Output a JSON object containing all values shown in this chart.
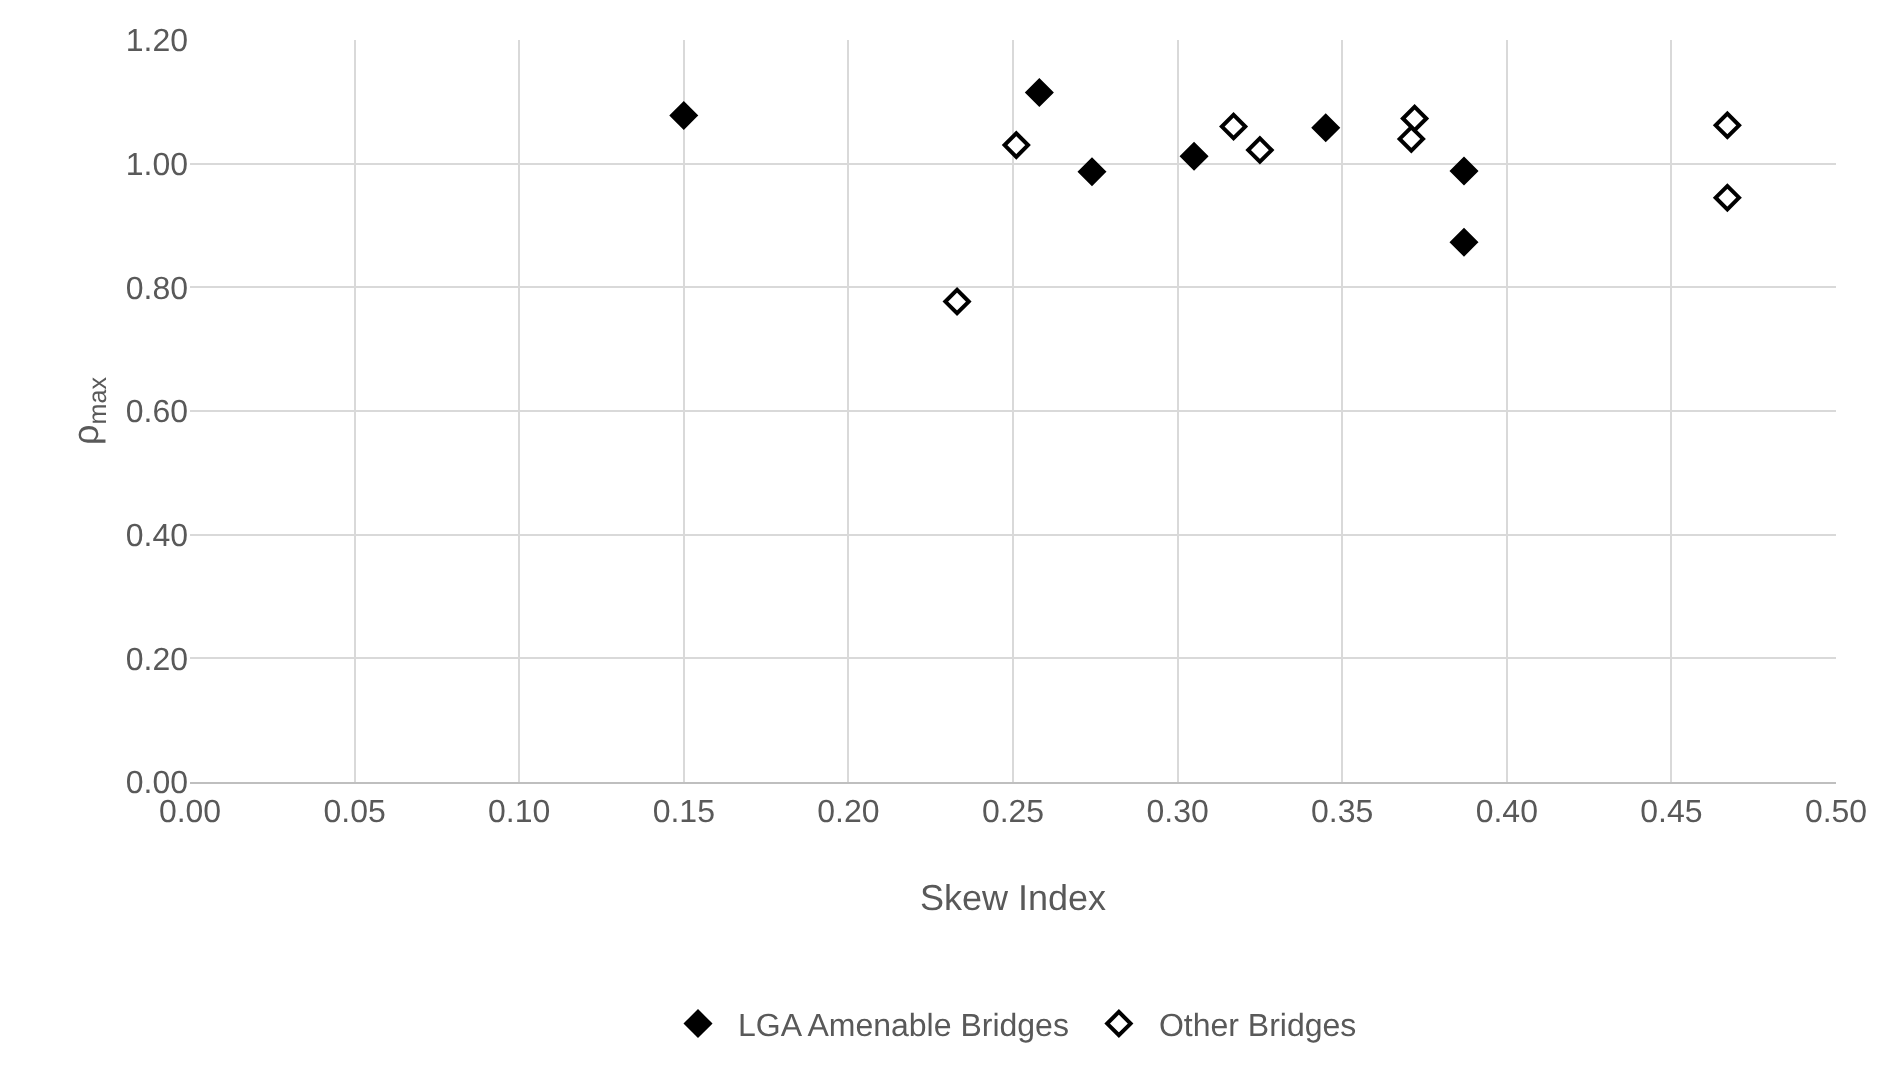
{
  "chart_data": {
    "type": "scatter",
    "xlabel": "Skew Index",
    "ylabel": "ρ$_{max}$",
    "xlim": [
      0,
      0.5
    ],
    "xticks": [
      {
        "value": 0,
        "label": "0.00"
      },
      {
        "value": 0.05,
        "label": "0.05"
      },
      {
        "value": 0.1,
        "label": "0.10"
      },
      {
        "value": 0.15,
        "label": "0.15"
      },
      {
        "value": 0.2,
        "label": "0.20"
      },
      {
        "value": 0.25,
        "label": "0.25"
      },
      {
        "value": 0.3,
        "label": "0.30"
      },
      {
        "value": 0.35,
        "label": "0.35"
      },
      {
        "value": 0.4,
        "label": "0.40"
      },
      {
        "value": 0.45,
        "label": "0.45"
      },
      {
        "value": 0.5,
        "label": "0.50"
      }
    ],
    "ylim": [
      0,
      1.2
    ],
    "yticks": [
      {
        "value": 0,
        "label": "0.00"
      },
      {
        "value": 0.2,
        "label": "0.20"
      },
      {
        "value": 0.4,
        "label": "0.40"
      },
      {
        "value": 0.6,
        "label": "0.60"
      },
      {
        "value": 0.8,
        "label": "0.80"
      },
      {
        "value": 1,
        "label": "1.00"
      },
      {
        "value": 1.2,
        "label": "1.20"
      }
    ],
    "grid": true,
    "legend": "bottom",
    "marker": "diamond",
    "series": [
      {
        "name": "LGA Amenable Bridges",
        "color": "#000000",
        "x": [
          0.15,
          0.258,
          0.274,
          0.305,
          0.345,
          0.387,
          0.387
        ],
        "values": [
          1.078,
          1.115,
          0.987,
          1.012,
          1.058,
          0.988,
          0.873
        ]
      },
      {
        "name": "Other Bridges",
        "color": "#ffffff",
        "x": [
          0.233,
          0.251,
          0.317,
          0.325,
          0.371,
          0.372,
          0.467,
          0.467
        ],
        "values": [
          0.777,
          1.03,
          1.06,
          1.022,
          1.04,
          1.073,
          1.062,
          0.945
        ]
      }
    ]
  }
}
